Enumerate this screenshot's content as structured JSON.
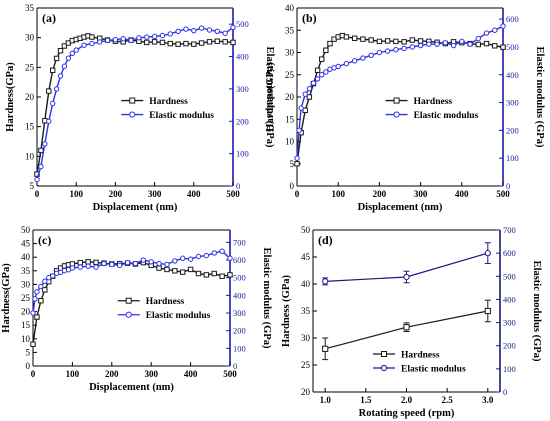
{
  "colors": {
    "hardness": "#1a1a1a",
    "modulus": "#3030e6",
    "axis_right": "#1a1ab0",
    "d_modulus": "#1a1a80"
  },
  "chart_data": [
    {
      "panel": "(a)",
      "type": "line",
      "xlabel": "Displacement (nm)",
      "ylabel": "Hardness(GPa)",
      "ylabel_right": "Elastic modulus (GPa)",
      "xlim": [
        0,
        500
      ],
      "ylim": [
        5,
        35
      ],
      "ylim_right": [
        0,
        550
      ],
      "xticks": [
        0,
        100,
        200,
        300,
        400,
        500
      ],
      "yticks": [
        5,
        10,
        15,
        20,
        25,
        30,
        35
      ],
      "yticks_right": [
        0,
        100,
        200,
        300,
        400,
        500
      ],
      "legend": {
        "placement": "middle-right",
        "entries": [
          "Hardness",
          "Elastic modulus"
        ]
      },
      "series": [
        {
          "name": "Hardness",
          "axis": "left",
          "x": [
            0,
            10,
            20,
            30,
            40,
            50,
            60,
            70,
            80,
            90,
            100,
            110,
            120,
            130,
            140,
            160,
            180,
            200,
            220,
            240,
            260,
            280,
            300,
            320,
            340,
            360,
            380,
            400,
            420,
            440,
            460,
            480,
            500
          ],
          "y": [
            7,
            11,
            16,
            21,
            24.5,
            26.5,
            27.8,
            28.6,
            29.1,
            29.5,
            29.7,
            29.9,
            30.1,
            30.3,
            30.1,
            29.9,
            29.6,
            29.4,
            29.3,
            29.6,
            29.4,
            29.2,
            29.3,
            29.2,
            29.0,
            28.9,
            29.0,
            28.9,
            29.1,
            29.3,
            29.4,
            29.3,
            29.2
          ]
        },
        {
          "name": "Elastic modulus",
          "axis": "right",
          "x": [
            0,
            10,
            20,
            30,
            40,
            50,
            60,
            70,
            80,
            90,
            100,
            120,
            140,
            160,
            180,
            200,
            220,
            240,
            260,
            280,
            300,
            320,
            340,
            360,
            380,
            400,
            420,
            440,
            460,
            480,
            500
          ],
          "y": [
            20,
            60,
            130,
            200,
            255,
            300,
            340,
            370,
            395,
            410,
            420,
            435,
            440,
            445,
            450,
            452,
            455,
            450,
            458,
            460,
            462,
            465,
            470,
            478,
            485,
            480,
            488,
            482,
            478,
            472,
            490
          ]
        }
      ]
    },
    {
      "panel": "(b)",
      "type": "line",
      "xlabel": "Displacement (nm)",
      "ylabel": "Hardness(GPa)",
      "ylabel_right": "Elastic modulus (GPa)",
      "xlim": [
        0,
        500
      ],
      "ylim": [
        0,
        40
      ],
      "ylim_right": [
        0,
        640
      ],
      "xticks": [
        0,
        100,
        200,
        300,
        400,
        500
      ],
      "yticks": [
        0,
        5,
        10,
        15,
        20,
        25,
        30,
        35,
        40
      ],
      "yticks_right": [
        0,
        100,
        200,
        300,
        400,
        500,
        600
      ],
      "legend": {
        "placement": "middle-right",
        "entries": [
          "Hardness",
          "Elastic modulus"
        ]
      },
      "series": [
        {
          "name": "Hardness",
          "axis": "left",
          "x": [
            0,
            10,
            20,
            30,
            40,
            50,
            60,
            70,
            80,
            90,
            100,
            110,
            120,
            140,
            160,
            180,
            200,
            220,
            240,
            260,
            280,
            300,
            320,
            340,
            360,
            380,
            400,
            420,
            440,
            460,
            480,
            500
          ],
          "y": [
            5,
            12,
            17,
            20,
            23,
            26,
            28.5,
            30.5,
            32,
            33,
            33.5,
            33.8,
            33.5,
            33.2,
            33,
            32.8,
            32.5,
            32.6,
            32.5,
            32.4,
            32.8,
            32.6,
            32.5,
            32.3,
            32.0,
            32.4,
            32.2,
            32.0,
            31.8,
            32.0,
            31.5,
            31.2
          ]
        },
        {
          "name": "Elastic modulus",
          "axis": "right",
          "x": [
            0,
            5,
            10,
            20,
            30,
            40,
            50,
            60,
            70,
            80,
            90,
            100,
            120,
            140,
            160,
            180,
            200,
            220,
            240,
            260,
            280,
            300,
            320,
            340,
            360,
            380,
            400,
            420,
            440,
            460,
            480,
            500
          ],
          "y": [
            100,
            200,
            280,
            330,
            350,
            370,
            385,
            400,
            410,
            420,
            425,
            430,
            440,
            450,
            460,
            470,
            480,
            485,
            490,
            495,
            500,
            505,
            510,
            510,
            515,
            505,
            520,
            510,
            530,
            550,
            560,
            575
          ]
        }
      ]
    },
    {
      "panel": "(c)",
      "type": "line",
      "xlabel": "Displacement (nm)",
      "ylabel": "Hardness(GPa)",
      "ylabel_right": "Elastic modulus (GPa)",
      "xlim": [
        0,
        500
      ],
      "ylim": [
        0,
        50
      ],
      "ylim_right": [
        0,
        770
      ],
      "xticks": [
        0,
        100,
        200,
        300,
        400,
        500
      ],
      "yticks": [
        0,
        5,
        10,
        15,
        20,
        25,
        30,
        35,
        40,
        45,
        50
      ],
      "yticks_right": [
        0,
        100,
        200,
        300,
        400,
        500,
        600,
        700
      ],
      "legend": {
        "placement": "middle-right",
        "entries": [
          "Hardness",
          "Elastic modulus"
        ]
      },
      "series": [
        {
          "name": "Hardness",
          "axis": "left",
          "x": [
            0,
            10,
            20,
            30,
            40,
            50,
            60,
            70,
            80,
            90,
            100,
            120,
            140,
            160,
            180,
            200,
            220,
            240,
            260,
            280,
            300,
            320,
            340,
            360,
            380,
            400,
            420,
            440,
            460,
            480,
            500
          ],
          "y": [
            8,
            18,
            24,
            28,
            31,
            33,
            35,
            36,
            36.8,
            37.2,
            37.5,
            38,
            38.3,
            38.1,
            37.8,
            37.5,
            37.6,
            37.8,
            37.5,
            38,
            37,
            36,
            35.5,
            35,
            34.5,
            35.5,
            34,
            33.5,
            34,
            33,
            33.5
          ]
        },
        {
          "name": "Elastic modulus",
          "axis": "right",
          "x": [
            0,
            5,
            10,
            20,
            30,
            40,
            50,
            60,
            70,
            80,
            90,
            100,
            120,
            140,
            160,
            180,
            200,
            220,
            240,
            260,
            280,
            300,
            320,
            340,
            360,
            380,
            400,
            420,
            440,
            460,
            480,
            500
          ],
          "y": [
            300,
            380,
            420,
            450,
            480,
            500,
            510,
            525,
            530,
            540,
            545,
            555,
            560,
            565,
            560,
            580,
            575,
            570,
            585,
            580,
            600,
            590,
            580,
            575,
            595,
            610,
            605,
            620,
            625,
            640,
            650,
            610
          ]
        }
      ]
    },
    {
      "panel": "(d)",
      "type": "line",
      "xlabel": "Rotating speed (rpm)",
      "ylabel": "Hardness (GPa)",
      "ylabel_right": "Elastic modulus (GPa)",
      "xlim": [
        0.85,
        3.15
      ],
      "ylim": [
        20,
        50
      ],
      "ylim_right": [
        0,
        700
      ],
      "xticks": [
        "1.0",
        "1.5",
        "2.0",
        "2.5",
        "3.0"
      ],
      "yticks": [
        20,
        25,
        30,
        35,
        40,
        45,
        50
      ],
      "yticks_right": [
        0,
        100,
        200,
        300,
        400,
        500,
        600,
        700
      ],
      "legend": {
        "placement": "lower-right",
        "entries": [
          "Hardness",
          "Elastic modulus"
        ]
      },
      "series": [
        {
          "name": "Hardness",
          "axis": "left",
          "x": [
            1.0,
            2.0,
            3.0
          ],
          "y": [
            28,
            32,
            35
          ],
          "err": [
            2,
            0.8,
            2
          ]
        },
        {
          "name": "Elastic modulus",
          "axis": "right",
          "x": [
            1.0,
            2.0,
            3.0
          ],
          "y": [
            478,
            497,
            600
          ],
          "err": [
            15,
            25,
            45
          ]
        }
      ]
    }
  ]
}
